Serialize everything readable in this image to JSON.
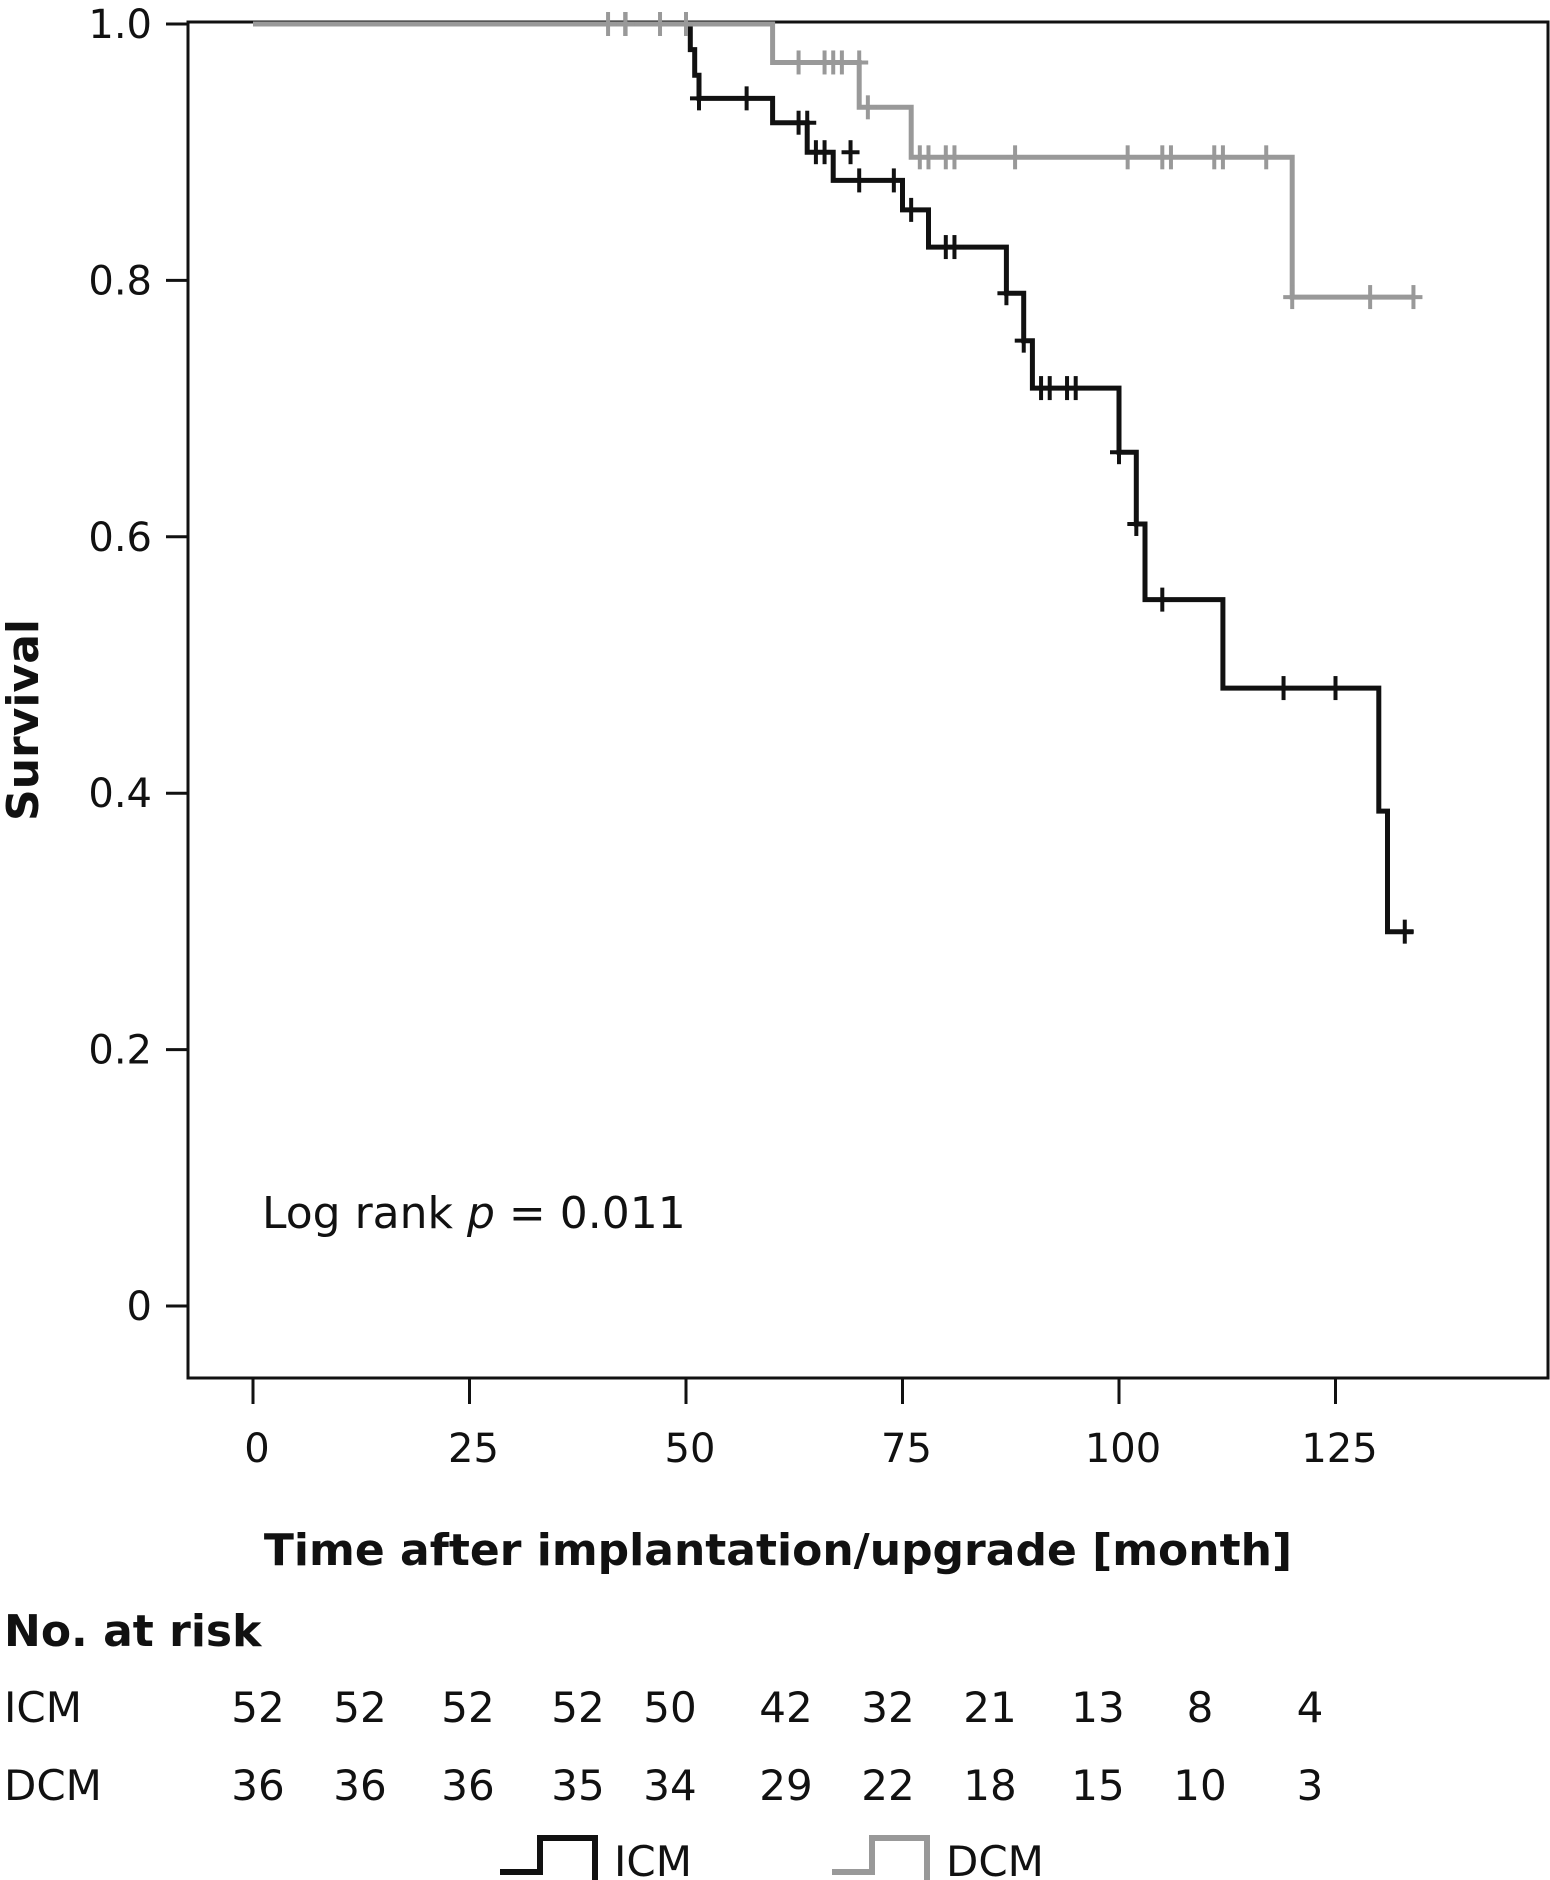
{
  "chart_data": {
    "type": "line",
    "subtype": "kaplan-meier",
    "xlabel": "Time after implantation/upgrade [month]",
    "ylabel": "Survival",
    "xlim": [
      -8,
      148
    ],
    "ylim": [
      -0.1,
      1.0
    ],
    "x_ticks": [
      0,
      25,
      50,
      75,
      100,
      125
    ],
    "x_tick_labels": [
      "0",
      "25",
      "50",
      "75",
      "100",
      "125"
    ],
    "y_ticks": [
      0,
      0.2,
      0.4,
      0.6,
      0.8,
      1.0
    ],
    "y_tick_labels": [
      "0",
      "0.2",
      "0.4",
      "0.6",
      "0.8",
      "1.0"
    ],
    "annotation": {
      "prefix": "Log rank ",
      "italic": "p",
      "suffix": " = 0.011"
    },
    "series": [
      {
        "name": "ICM",
        "color": "#111111",
        "steps": [
          [
            0,
            1.0
          ],
          [
            50.5,
            1.0
          ],
          [
            50.5,
            0.98
          ],
          [
            51,
            0.98
          ],
          [
            51,
            0.96
          ],
          [
            51.5,
            0.96
          ],
          [
            51.5,
            0.942
          ],
          [
            60,
            0.942
          ],
          [
            60,
            0.923
          ],
          [
            64,
            0.923
          ],
          [
            64,
            0.9
          ],
          [
            67,
            0.9
          ],
          [
            67,
            0.878
          ],
          [
            75,
            0.878
          ],
          [
            75,
            0.855
          ],
          [
            78,
            0.855
          ],
          [
            78,
            0.826
          ],
          [
            87,
            0.826
          ],
          [
            87,
            0.79
          ],
          [
            89,
            0.79
          ],
          [
            89,
            0.753
          ],
          [
            90,
            0.753
          ],
          [
            90,
            0.716
          ],
          [
            100,
            0.716
          ],
          [
            100,
            0.666
          ],
          [
            102,
            0.666
          ],
          [
            102,
            0.61
          ],
          [
            103,
            0.61
          ],
          [
            103,
            0.551
          ],
          [
            112,
            0.551
          ],
          [
            112,
            0.482
          ],
          [
            130,
            0.482
          ],
          [
            130,
            0.386
          ],
          [
            131,
            0.386
          ],
          [
            131,
            0.292
          ],
          [
            134,
            0.292
          ]
        ],
        "censored": [
          [
            43,
            1.0
          ],
          [
            51.5,
            0.942
          ],
          [
            57,
            0.942
          ],
          [
            63,
            0.923
          ],
          [
            64,
            0.923
          ],
          [
            65,
            0.9
          ],
          [
            66,
            0.9
          ],
          [
            69,
            0.9
          ],
          [
            70,
            0.878
          ],
          [
            74,
            0.878
          ],
          [
            76,
            0.855
          ],
          [
            80,
            0.826
          ],
          [
            81,
            0.826
          ],
          [
            87,
            0.79
          ],
          [
            89,
            0.753
          ],
          [
            91,
            0.716
          ],
          [
            92,
            0.716
          ],
          [
            94,
            0.716
          ],
          [
            95,
            0.716
          ],
          [
            100,
            0.666
          ],
          [
            102,
            0.61
          ],
          [
            105,
            0.551
          ],
          [
            119,
            0.482
          ],
          [
            125,
            0.482
          ],
          [
            133,
            0.292
          ]
        ]
      },
      {
        "name": "DCM",
        "color": "#999999",
        "steps": [
          [
            0,
            1.0
          ],
          [
            60,
            1.0
          ],
          [
            60,
            0.97
          ],
          [
            70,
            0.97
          ],
          [
            70,
            0.935
          ],
          [
            76,
            0.935
          ],
          [
            76,
            0.896
          ],
          [
            120,
            0.896
          ],
          [
            120,
            0.787
          ],
          [
            134,
            0.787
          ]
        ],
        "censored": [
          [
            41,
            1.0
          ],
          [
            43,
            1.0
          ],
          [
            47,
            1.0
          ],
          [
            50,
            1.0
          ],
          [
            63,
            0.97
          ],
          [
            66,
            0.97
          ],
          [
            67,
            0.97
          ],
          [
            68,
            0.97
          ],
          [
            70,
            0.97
          ],
          [
            71,
            0.935
          ],
          [
            77,
            0.896
          ],
          [
            78,
            0.896
          ],
          [
            80,
            0.896
          ],
          [
            81,
            0.896
          ],
          [
            88,
            0.896
          ],
          [
            101,
            0.896
          ],
          [
            105,
            0.896
          ],
          [
            106,
            0.896
          ],
          [
            111,
            0.896
          ],
          [
            112,
            0.896
          ],
          [
            117,
            0.896
          ],
          [
            120,
            0.787
          ],
          [
            129,
            0.787
          ],
          [
            134,
            0.787
          ]
        ]
      }
    ],
    "risk_table": {
      "title": "No. at risk",
      "rows": [
        {
          "label": "ICM",
          "values": [
            "52",
            "52",
            "52",
            "52",
            "50",
            "42",
            "32",
            "21",
            "13",
            "8",
            "4"
          ]
        },
        {
          "label": "DCM",
          "values": [
            "36",
            "36",
            "36",
            "35",
            "34",
            "29",
            "22",
            "18",
            "15",
            "10",
            "3"
          ]
        }
      ]
    },
    "legend": {
      "position": "bottom-center",
      "items": [
        "ICM",
        "DCM"
      ]
    }
  }
}
